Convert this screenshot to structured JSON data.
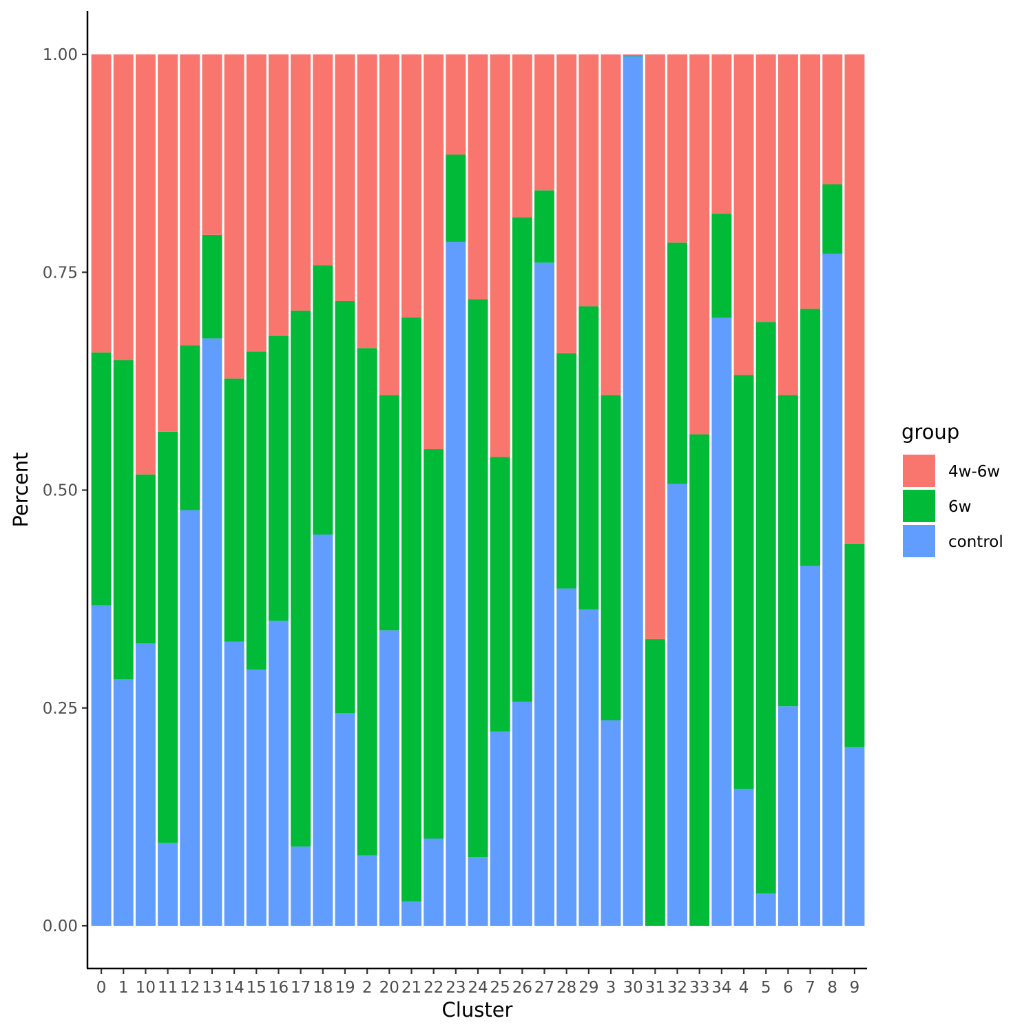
{
  "chart_data": {
    "type": "bar",
    "stacked": true,
    "position": "fill",
    "title": "",
    "xlabel": "Cluster",
    "ylabel": "Percent",
    "ylim": [
      -0.05,
      1.05
    ],
    "yticks": [
      0.0,
      0.25,
      0.5,
      0.75,
      1.0
    ],
    "ytick_labels": [
      "0.00",
      "0.25",
      "0.50",
      "0.75",
      "1.00"
    ],
    "grid": false,
    "legend": {
      "title": "group",
      "position": "right"
    },
    "categories": [
      "0",
      "1",
      "10",
      "11",
      "12",
      "13",
      "14",
      "15",
      "16",
      "17",
      "18",
      "19",
      "2",
      "20",
      "21",
      "22",
      "23",
      "24",
      "25",
      "26",
      "27",
      "28",
      "29",
      "3",
      "30",
      "31",
      "32",
      "33",
      "34",
      "4",
      "5",
      "6",
      "7",
      "8",
      "9"
    ],
    "series": [
      {
        "name": "4w-6w",
        "color": "#F8766D",
        "values": [
          0.342,
          0.351,
          0.482,
          0.433,
          0.334,
          0.207,
          0.372,
          0.341,
          0.323,
          0.294,
          0.242,
          0.283,
          0.337,
          0.391,
          0.302,
          0.453,
          0.115,
          0.281,
          0.462,
          0.187,
          0.156,
          0.343,
          0.289,
          0.391,
          0.001,
          0.671,
          0.216,
          0.436,
          0.183,
          0.368,
          0.307,
          0.391,
          0.292,
          0.149,
          0.562
        ]
      },
      {
        "name": "6w",
        "color": "#00BA38",
        "values": [
          0.29,
          0.366,
          0.194,
          0.472,
          0.189,
          0.119,
          0.302,
          0.365,
          0.327,
          0.615,
          0.309,
          0.473,
          0.582,
          0.27,
          0.67,
          0.447,
          0.1,
          0.64,
          0.315,
          0.556,
          0.083,
          0.27,
          0.348,
          0.373,
          0.001,
          0.329,
          0.277,
          0.564,
          0.119,
          0.475,
          0.656,
          0.357,
          0.295,
          0.08,
          0.233
        ]
      },
      {
        "name": "control",
        "color": "#619CFF",
        "values": [
          0.368,
          0.283,
          0.324,
          0.095,
          0.477,
          0.674,
          0.326,
          0.294,
          0.35,
          0.091,
          0.449,
          0.244,
          0.081,
          0.339,
          0.028,
          0.1,
          0.785,
          0.079,
          0.223,
          0.257,
          0.761,
          0.387,
          0.363,
          0.236,
          0.998,
          0.0,
          0.507,
          0.0,
          0.698,
          0.157,
          0.037,
          0.252,
          0.413,
          0.771,
          0.205
        ]
      }
    ]
  }
}
